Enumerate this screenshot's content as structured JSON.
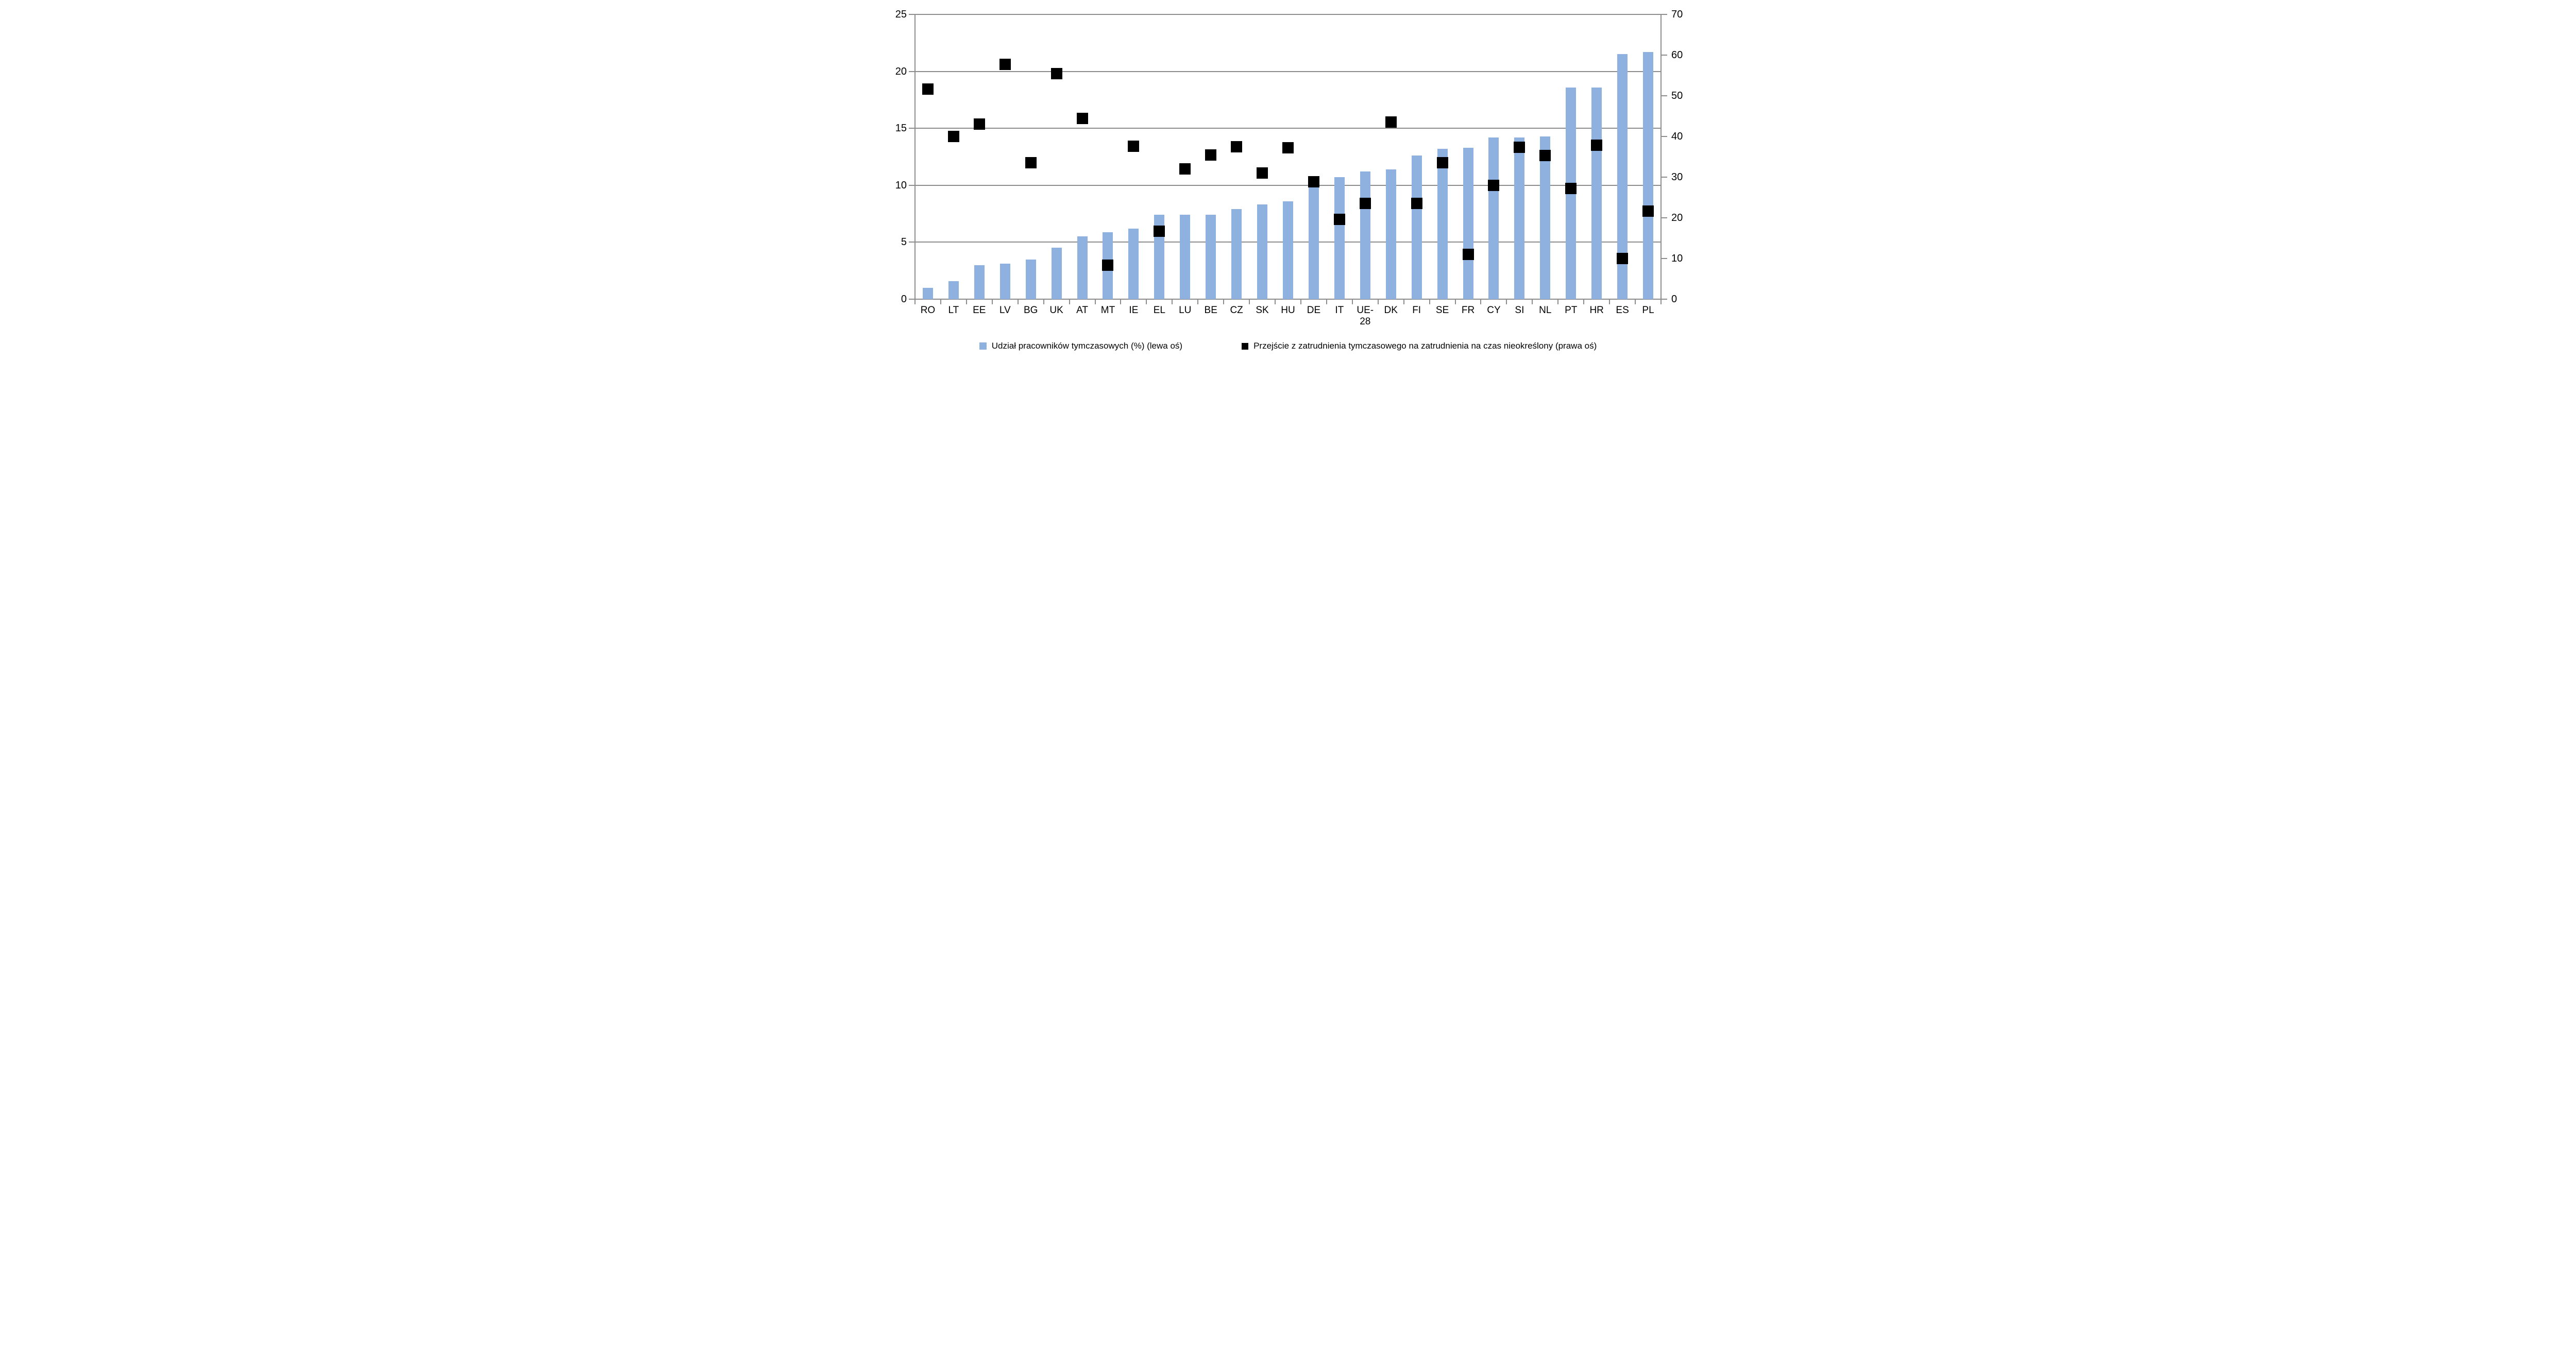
{
  "chart_data": {
    "type": "bar+scatter (dual axis)",
    "title": "",
    "grid": "horizontal gridlines at left-axis intervals of 5",
    "legend_position": "bottom-center",
    "colors": {
      "bar_fill": "#8FB1E0",
      "marker_fill": "#000000",
      "axis_and_grid": "#8C8C8C",
      "text": "#000000"
    },
    "left_axis": {
      "max": 25,
      "min": 0,
      "ticks": [
        25,
        20,
        15,
        10,
        5,
        0
      ]
    },
    "right_axis": {
      "max": 70,
      "min": 0,
      "ticks": [
        70,
        60,
        50,
        40,
        30,
        20,
        10,
        0
      ]
    },
    "series": [
      {
        "name": "Udział pracowników tymczasowych (%) (lewa oś)",
        "type": "bar",
        "axis": "left"
      },
      {
        "name": "Przejście z zatrudnienia tymczasowego na zatrudnienia na czas nieokreślony (prawa oś)",
        "type": "scatter-square",
        "axis": "right"
      }
    ],
    "categories": [
      {
        "code": "RO",
        "bar": 1.0,
        "marker": 51.6
      },
      {
        "code": "LT",
        "bar": 1.6,
        "marker": 40.0
      },
      {
        "code": "EE",
        "bar": 3.0,
        "marker": 43.0
      },
      {
        "code": "LV",
        "bar": 3.1,
        "marker": 57.7
      },
      {
        "code": "BG",
        "bar": 3.5,
        "marker": 33.5
      },
      {
        "code": "UK",
        "bar": 4.5,
        "marker": 55.4
      },
      {
        "code": "AT",
        "bar": 5.5,
        "marker": 44.4
      },
      {
        "code": "MT",
        "bar": 5.9,
        "marker": 8.3
      },
      {
        "code": "IE",
        "bar": 6.2,
        "marker": 37.6
      },
      {
        "code": "EL",
        "bar": 7.4,
        "marker": 16.7
      },
      {
        "code": "LU",
        "bar": 7.4,
        "marker": 32.0
      },
      {
        "code": "BE",
        "bar": 7.4,
        "marker": 35.5
      },
      {
        "code": "CZ",
        "bar": 7.9,
        "marker": 37.5
      },
      {
        "code": "SK",
        "bar": 8.3,
        "marker": 31.0
      },
      {
        "code": "HU",
        "bar": 8.6,
        "marker": 37.2
      },
      {
        "code": "DE",
        "bar": 10.3,
        "marker": 28.8
      },
      {
        "code": "IT",
        "bar": 10.7,
        "marker": 19.6
      },
      {
        "code": "UE-28",
        "lines": [
          "UE-",
          "28"
        ],
        "bar": 11.2,
        "marker": 23.5
      },
      {
        "code": "DK",
        "bar": 11.4,
        "marker": 43.5
      },
      {
        "code": "FI",
        "bar": 12.6,
        "marker": 23.6
      },
      {
        "code": "SE",
        "bar": 13.2,
        "marker": 33.5
      },
      {
        "code": "FR",
        "bar": 13.3,
        "marker": 11.0
      },
      {
        "code": "CY",
        "bar": 14.2,
        "marker": 28.0
      },
      {
        "code": "SI",
        "bar": 14.2,
        "marker": 37.3
      },
      {
        "code": "NL",
        "bar": 14.3,
        "marker": 35.3
      },
      {
        "code": "PT",
        "bar": 18.6,
        "marker": 27.2
      },
      {
        "code": "HR",
        "bar": 18.6,
        "marker": 37.9
      },
      {
        "code": "ES",
        "bar": 21.5,
        "marker": 10.0
      },
      {
        "code": "PL",
        "bar": 21.7,
        "marker": 21.7
      }
    ],
    "legend": [
      {
        "label": "Udział pracowników tymczasowych (%) (lewa oś)",
        "swatch": "bar"
      },
      {
        "label": "Przejście z zatrudnienia tymczasowego na zatrudnienia na czas nieokreślony (prawa oś)",
        "swatch": "marker"
      }
    ]
  }
}
